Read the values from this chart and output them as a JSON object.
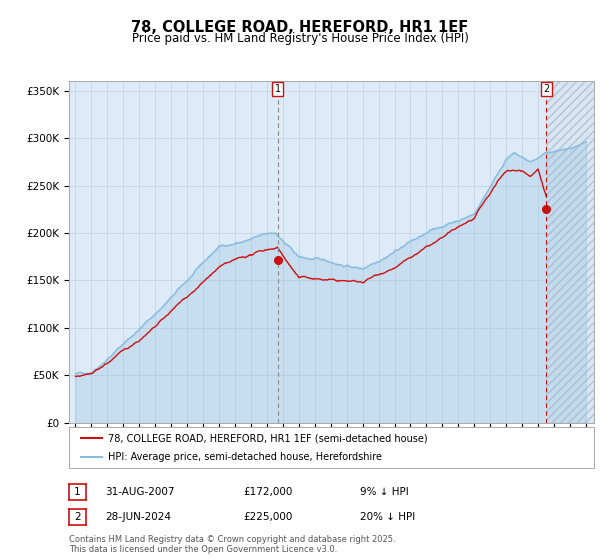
{
  "title": "78, COLLEGE ROAD, HEREFORD, HR1 1EF",
  "subtitle": "Price paid vs. HM Land Registry's House Price Index (HPI)",
  "title_fontsize": 10.5,
  "subtitle_fontsize": 8.5,
  "bg_color": "#ddeaf7",
  "hatch_bg_color": "#e8eef4",
  "grid_color": "#c8d8e8",
  "red_line_color": "#cc1111",
  "blue_line_color": "#88bbdd",
  "ylim": [
    0,
    360000
  ],
  "yticks": [
    0,
    50000,
    100000,
    150000,
    200000,
    250000,
    300000,
    350000
  ],
  "ytick_labels": [
    "£0",
    "£50K",
    "£100K",
    "£150K",
    "£200K",
    "£250K",
    "£300K",
    "£350K"
  ],
  "year_start": 1995,
  "year_end": 2027,
  "marker1_year": 2007.67,
  "marker1_value": 172000,
  "marker2_year": 2024.5,
  "marker2_value": 225000,
  "legend1": "78, COLLEGE ROAD, HEREFORD, HR1 1EF (semi-detached house)",
  "legend2": "HPI: Average price, semi-detached house, Herefordshire",
  "note1_label": "1",
  "note1_date": "31-AUG-2007",
  "note1_price": "£172,000",
  "note1_hpi": "9% ↓ HPI",
  "note2_label": "2",
  "note2_date": "28-JUN-2024",
  "note2_price": "£225,000",
  "note2_hpi": "20% ↓ HPI",
  "footer": "Contains HM Land Registry data © Crown copyright and database right 2025.\nThis data is licensed under the Open Government Licence v3.0.",
  "footer_fontsize": 6.0
}
